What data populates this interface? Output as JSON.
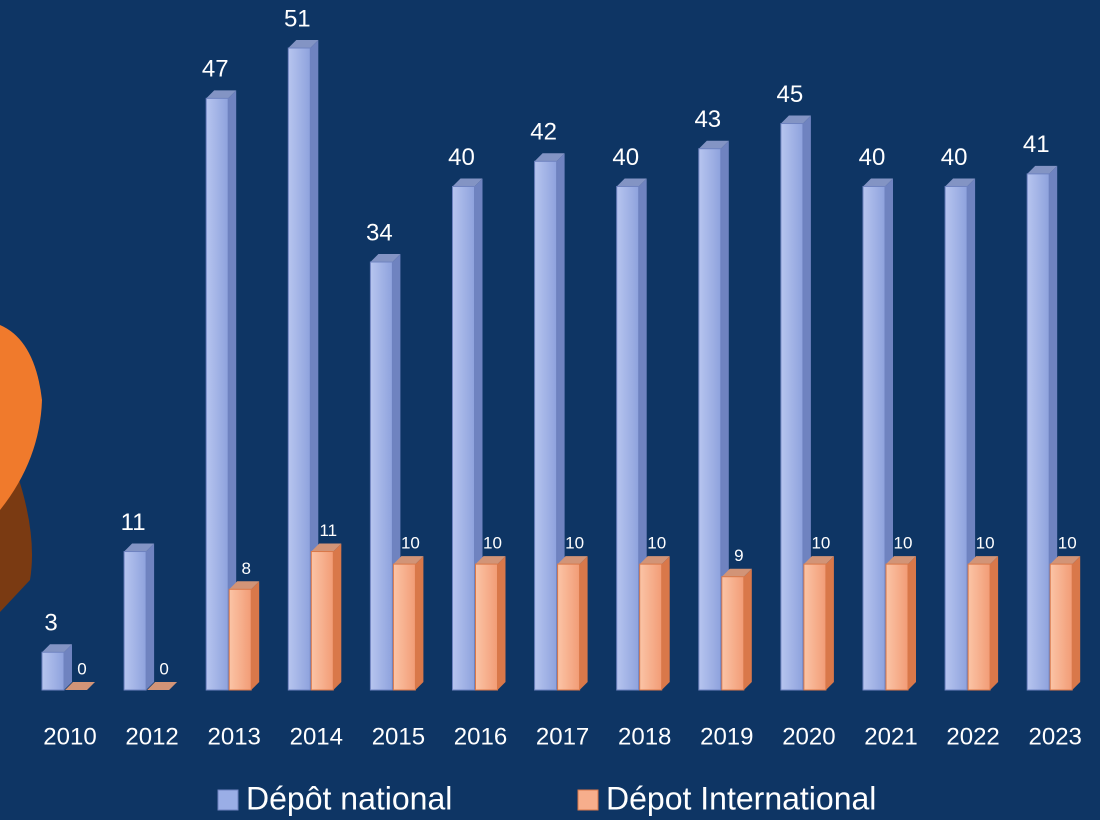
{
  "chart_data": {
    "type": "bar3d",
    "categories": [
      "2010",
      "2012",
      "2013",
      "2014",
      "2015",
      "2016",
      "2017",
      "2018",
      "2019",
      "2020",
      "2021",
      "2022",
      "2023"
    ],
    "series": [
      {
        "name": "Dépôt national",
        "color": "#9aaee6",
        "values": [
          3,
          11,
          47,
          51,
          34,
          40,
          42,
          40,
          43,
          45,
          40,
          40,
          41
        ]
      },
      {
        "name": "Dépot International",
        "color": "#f7ae8c",
        "values": [
          0,
          0,
          8,
          11,
          10,
          10,
          10,
          10,
          9,
          10,
          10,
          10,
          10
        ]
      }
    ],
    "legend": "bottom"
  }
}
